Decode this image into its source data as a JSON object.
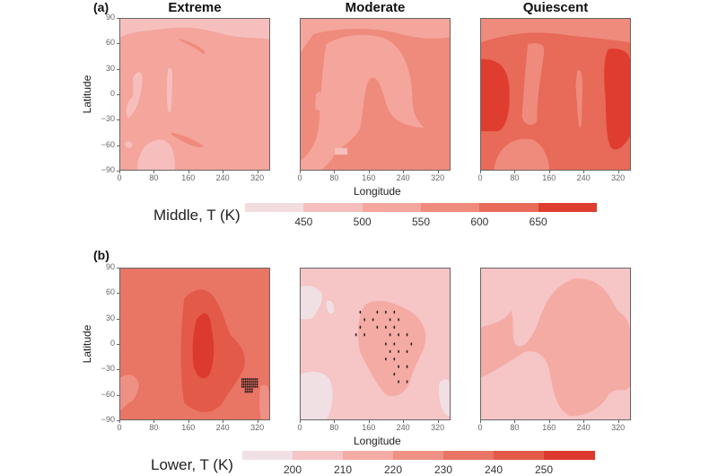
{
  "chart_data": [
    {
      "type": "heatmap",
      "panel_label": "(a)",
      "columns": [
        "Extreme",
        "Moderate",
        "Quiescent"
      ],
      "xlabel": "Longitude",
      "ylabel": "Latitude",
      "xticks": [
        0,
        80,
        160,
        240,
        320
      ],
      "yticks": [
        90,
        60,
        30,
        0,
        -30,
        -60,
        -90
      ],
      "xlim": [
        0,
        350
      ],
      "ylim": [
        -90,
        90
      ],
      "colorbar": {
        "title": "Middle, T (K)",
        "tick_labels": [
          "450",
          "500",
          "550",
          "600",
          "650"
        ],
        "colors": [
          "#f3dcdf",
          "#f6bfbd",
          "#f4a59c",
          "#ef8b7c",
          "#e86a58",
          "#df3d2f"
        ]
      }
    },
    {
      "type": "heatmap",
      "panel_label": "(b)",
      "columns": [
        "Extreme",
        "Moderate",
        "Quiescent"
      ],
      "xlabel": "Longitude",
      "ylabel": "Latitude",
      "xticks": [
        0,
        80,
        160,
        240,
        320
      ],
      "yticks": [
        90,
        60,
        30,
        0,
        -30,
        -60,
        -90
      ],
      "xlim": [
        0,
        350
      ],
      "ylim": [
        -90,
        90
      ],
      "colorbar": {
        "title": "Lower, T (K)",
        "tick_labels": [
          "200",
          "210",
          "220",
          "230",
          "240",
          "250"
        ],
        "colors": [
          "#f0e0e4",
          "#f6c5c5",
          "#f4aba4",
          "#ef9084",
          "#e97564",
          "#e35a48",
          "#dc3a2e"
        ]
      },
      "significance_dots_moderate": [
        [
          140,
          38
        ],
        [
          200,
          38
        ],
        [
          180,
          38
        ],
        [
          220,
          38
        ],
        [
          150,
          29
        ],
        [
          170,
          29
        ],
        [
          210,
          29
        ],
        [
          230,
          29
        ],
        [
          140,
          20
        ],
        [
          180,
          20
        ],
        [
          200,
          20
        ],
        [
          220,
          20
        ],
        [
          130,
          11
        ],
        [
          150,
          11
        ],
        [
          210,
          11
        ],
        [
          230,
          11
        ],
        [
          250,
          11
        ],
        [
          200,
          0
        ],
        [
          220,
          0
        ],
        [
          260,
          0
        ],
        [
          210,
          -9
        ],
        [
          230,
          -9
        ],
        [
          250,
          -9
        ],
        [
          200,
          -18
        ],
        [
          220,
          -18
        ],
        [
          230,
          -27
        ],
        [
          250,
          -27
        ],
        [
          220,
          -36
        ],
        [
          230,
          -45
        ],
        [
          250,
          -45
        ]
      ]
    }
  ]
}
